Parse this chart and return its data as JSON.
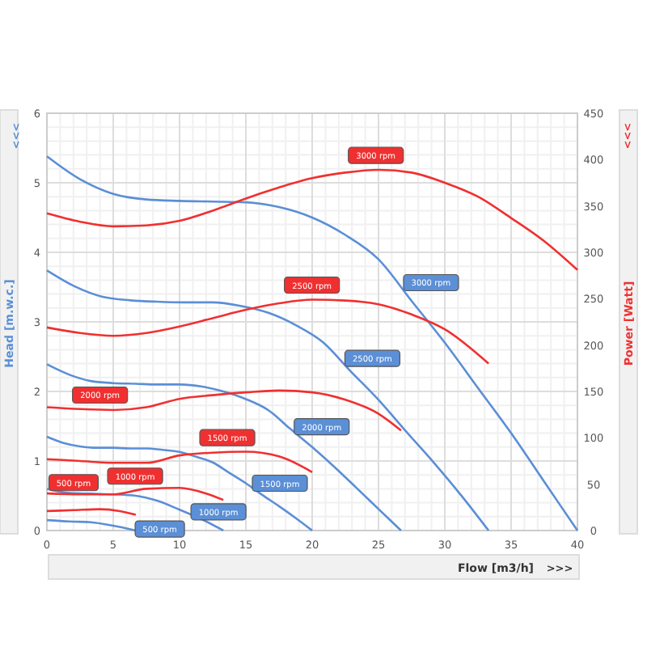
{
  "chart_data": {
    "type": "line",
    "xlabel": "Flow [m3/h]",
    "ylabel": "Head [m.w.c.]",
    "y2label": "Power [Watt]",
    "xlim": [
      0,
      40
    ],
    "xticks": [
      0,
      5,
      10,
      15,
      20,
      25,
      30,
      35,
      40
    ],
    "ylim": [
      0,
      6
    ],
    "yticks": [
      0,
      1,
      2,
      3,
      4,
      5,
      6
    ],
    "y2lim": [
      0,
      450
    ],
    "y2ticks": [
      0,
      50,
      100,
      150,
      200,
      250,
      300,
      350,
      400,
      450
    ],
    "grid": true,
    "marker": "none",
    "line_style": "solid",
    "annotations": [
      ">>>",
      ">>>",
      ">>>"
    ],
    "series": [
      {
        "name": "3000 rpm",
        "color": "#5b8fd6",
        "x": [
          0,
          2.5,
          5,
          7.5,
          10,
          12.5,
          15,
          17.5,
          20,
          22.5,
          25,
          27.5,
          30,
          32.5,
          35,
          37.5,
          40
        ],
        "values": [
          5.38,
          5.05,
          4.84,
          4.76,
          4.74,
          4.73,
          4.72,
          4.65,
          4.5,
          4.25,
          3.9,
          3.3,
          2.7,
          2.05,
          1.4,
          0.7,
          0
        ]
      },
      {
        "name": "2500 rpm",
        "color": "#5b8fd6",
        "x": [
          0,
          2.1,
          4.2,
          6.3,
          8.3,
          10.4,
          12.5,
          14.6,
          16.7,
          18.8,
          20.8,
          22.9,
          25,
          27.1,
          29.2,
          31.3,
          33.3
        ],
        "values": [
          3.74,
          3.51,
          3.36,
          3.31,
          3.29,
          3.28,
          3.28,
          3.23,
          3.13,
          2.95,
          2.71,
          2.29,
          1.88,
          1.42,
          0.97,
          0.49,
          0
        ]
      },
      {
        "name": "2000 rpm",
        "color": "#5b8fd6",
        "x": [
          0,
          1.7,
          3.3,
          5,
          6.7,
          8.3,
          10,
          11.7,
          13.3,
          15,
          16.7,
          18.3,
          20,
          21.7,
          23.3,
          25,
          26.7
        ],
        "values": [
          2.39,
          2.24,
          2.15,
          2.12,
          2.11,
          2.1,
          2.1,
          2.07,
          2,
          1.89,
          1.73,
          1.47,
          1.2,
          0.91,
          0.62,
          0.31,
          0
        ]
      },
      {
        "name": "1500 rpm",
        "color": "#5b8fd6",
        "x": [
          0,
          1.25,
          2.5,
          3.75,
          5,
          6.25,
          7.5,
          8.75,
          10,
          11.25,
          12.5,
          13.75,
          15,
          16.25,
          17.5,
          18.75,
          20
        ],
        "values": [
          1.35,
          1.26,
          1.21,
          1.19,
          1.19,
          1.18,
          1.18,
          1.16,
          1.13,
          1.06,
          0.98,
          0.83,
          0.68,
          0.51,
          0.35,
          0.18,
          0
        ]
      },
      {
        "name": "1000 rpm",
        "color": "#5b8fd6",
        "x": [
          0,
          1.7,
          3.3,
          5,
          6.7,
          8.3,
          10,
          11.7,
          13.3
        ],
        "values": [
          0.6,
          0.54,
          0.53,
          0.52,
          0.5,
          0.43,
          0.3,
          0.16,
          0
        ]
      },
      {
        "name": "500 rpm",
        "color": "#5b8fd6",
        "x": [
          0,
          1.7,
          3.3,
          5,
          6.7
        ],
        "values": [
          0.15,
          0.13,
          0.12,
          0.07,
          0
        ]
      },
      {
        "name": "3000 rpm",
        "color": "#f03030",
        "axis": "y2",
        "x": [
          0,
          2.5,
          5,
          7.5,
          10,
          12.5,
          15,
          17.5,
          20,
          22.5,
          25,
          27.5,
          30,
          32.5,
          35,
          37.5,
          40
        ],
        "values": [
          342,
          333,
          328,
          329,
          334,
          345,
          358,
          370,
          380,
          386,
          389,
          386,
          375,
          360,
          337,
          312,
          281
        ]
      },
      {
        "name": "2500 rpm",
        "color": "#f03030",
        "axis": "y2",
        "x": [
          0,
          2.5,
          5,
          7.5,
          10,
          12.5,
          15,
          17.5,
          20,
          22.5,
          25,
          27.5,
          30,
          33.3
        ],
        "values": [
          219,
          213,
          210,
          213,
          220,
          229,
          238,
          245,
          249,
          248,
          244,
          233,
          217,
          180
        ]
      },
      {
        "name": "2000 rpm",
        "color": "#f03030",
        "axis": "y2",
        "x": [
          0,
          2.5,
          5,
          7.5,
          10,
          12.5,
          15,
          17.5,
          20,
          22.5,
          25,
          26.7
        ],
        "values": [
          133,
          131,
          130,
          133,
          142,
          146,
          149,
          151,
          149,
          141,
          126,
          108
        ]
      },
      {
        "name": "1500 rpm",
        "color": "#f03030",
        "axis": "y2",
        "x": [
          0,
          2.5,
          5,
          7.5,
          10,
          12.5,
          15,
          17.5,
          20
        ],
        "values": [
          77,
          75,
          73,
          73,
          81,
          84,
          85,
          80,
          63
        ]
      },
      {
        "name": "1000 rpm",
        "color": "#f03030",
        "axis": "y2",
        "x": [
          0,
          2.5,
          5,
          7.5,
          10,
          12,
          13.3
        ],
        "values": [
          40,
          39,
          39,
          45,
          46,
          40,
          33
        ]
      },
      {
        "name": "500 rpm",
        "color": "#f03030",
        "axis": "y2",
        "x": [
          0,
          2,
          4,
          5.5,
          6.7
        ],
        "values": [
          21,
          22,
          23,
          21,
          17
        ]
      }
    ]
  }
}
